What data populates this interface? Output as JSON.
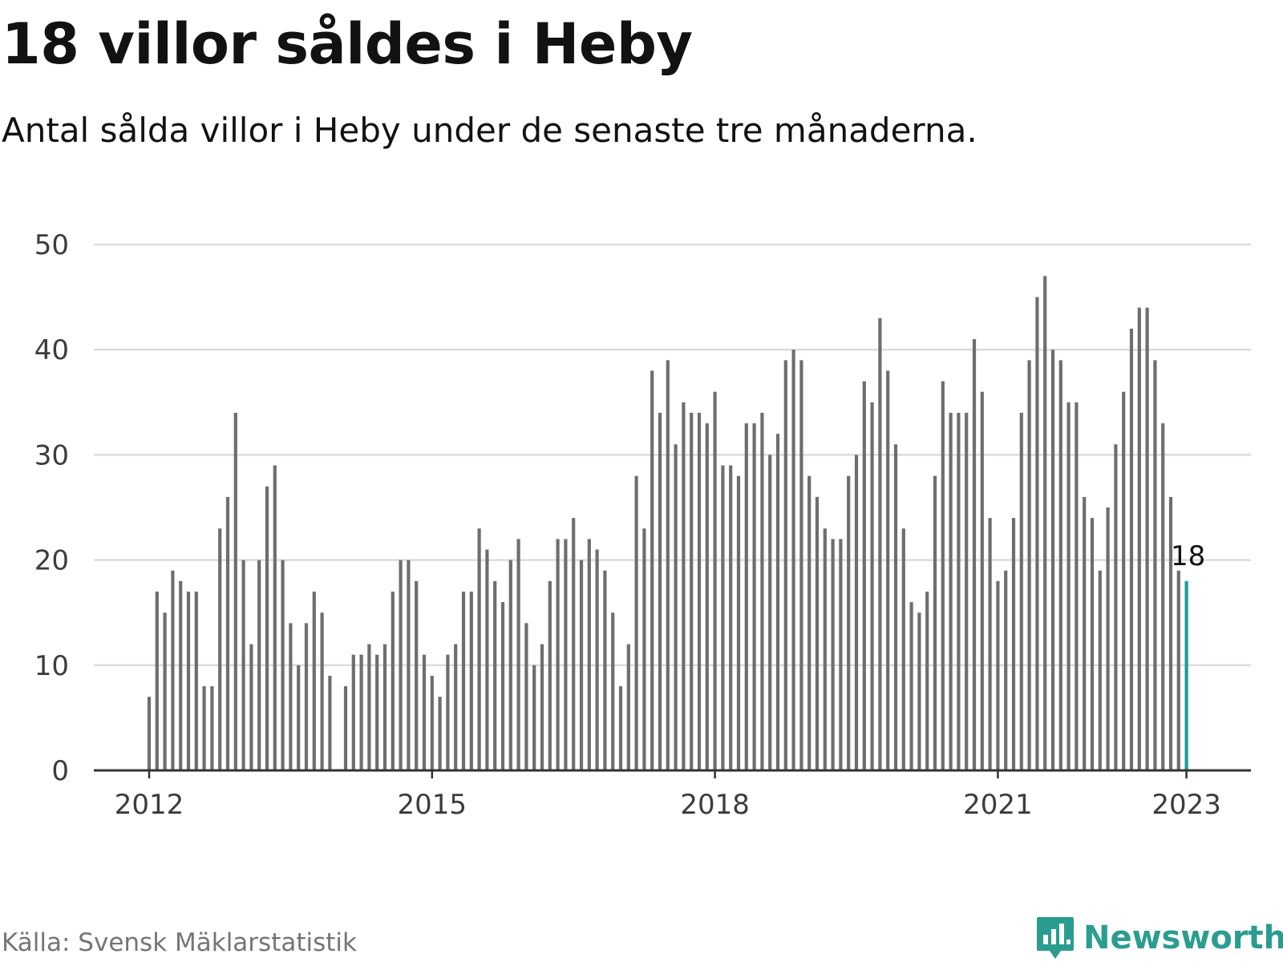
{
  "header": {
    "title": "18 villor såldes i Heby",
    "subtitle": "Antal sålda villor i Heby under de senaste tre månaderna."
  },
  "footer": {
    "source": "Källa: Svensk Mäklarstatistik",
    "brand": "Newsworthy",
    "brand_icon": "bar-chart-speech-bubble-icon"
  },
  "colors": {
    "bar": "#6e6e6e",
    "highlight": "#1a9e96",
    "grid": "#dcdcdc",
    "axis": "#333333",
    "brand": "#2a9d8f"
  },
  "chart_data": {
    "type": "bar",
    "title": "18 villor såldes i Heby",
    "subtitle": "Antal sålda villor i Heby under de senaste tre månaderna.",
    "xlabel": "",
    "ylabel": "",
    "x_start": "2012-01",
    "x_end": "2023-01",
    "ylim": [
      0,
      50
    ],
    "yticks": [
      0,
      10,
      20,
      30,
      40,
      50
    ],
    "xticks": [
      "2012",
      "2015",
      "2018",
      "2021",
      "2023"
    ],
    "grid": true,
    "series": [
      {
        "values": [
          7,
          17,
          15,
          19,
          18,
          17,
          17,
          8,
          8,
          23,
          26,
          34,
          20,
          12,
          20,
          27,
          29,
          20,
          14,
          10,
          14,
          17,
          15,
          9,
          null,
          8,
          11,
          11,
          12,
          11,
          12,
          17,
          20,
          20,
          18,
          11,
          9,
          7,
          11,
          12,
          17,
          17,
          23,
          21,
          18,
          16,
          20,
          22,
          14,
          10,
          12,
          18,
          22,
          22,
          24,
          20,
          22,
          21,
          19,
          15,
          8,
          12,
          28,
          23,
          38,
          34,
          39,
          31,
          35,
          34,
          34,
          33,
          36,
          29,
          29,
          28,
          33,
          33,
          34,
          30,
          32,
          39,
          40,
          39,
          28,
          26,
          23,
          22,
          22,
          28,
          30,
          37,
          35,
          43,
          38,
          31,
          23,
          16,
          15,
          17,
          28,
          37,
          34,
          34,
          34,
          41,
          36,
          24,
          18,
          19,
          24,
          34,
          39,
          45,
          47,
          40,
          39,
          35,
          35,
          26,
          24,
          19,
          25,
          31,
          36,
          42,
          44,
          44,
          39,
          33,
          26,
          19,
          18
        ]
      }
    ],
    "highlight": {
      "x": "2023-01",
      "value": 18,
      "label": "18"
    }
  }
}
